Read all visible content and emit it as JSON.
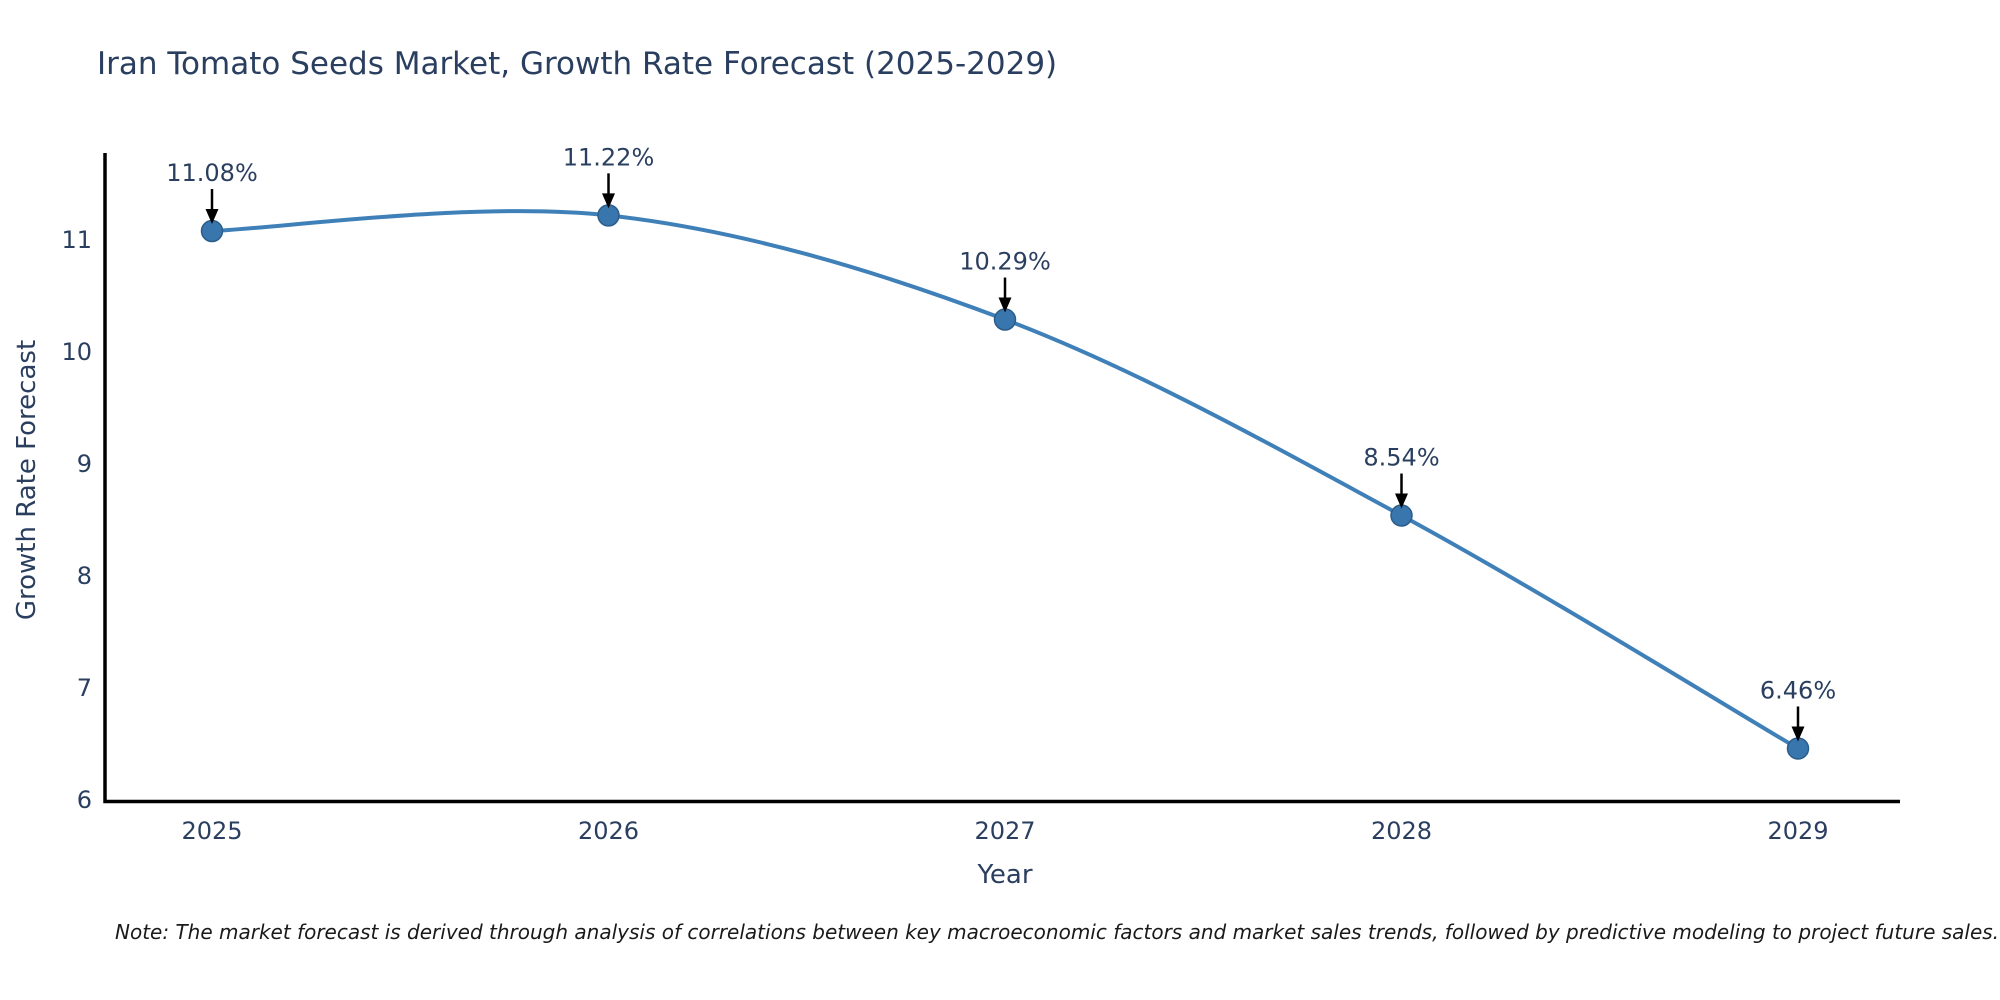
{
  "page": {
    "note": "Note: The market forecast is derived through analysis of correlations between key macroeconomic factors and market sales trends, followed by predictive modeling to project future sales."
  },
  "chart_data": {
    "type": "line",
    "title": "Iran Tomato Seeds Market, Growth Rate Forecast (2025-2029)",
    "xlabel": "Year",
    "ylabel": "Growth Rate Forecast",
    "categories": [
      "2025",
      "2026",
      "2027",
      "2028",
      "2029"
    ],
    "values": [
      11.08,
      11.22,
      10.29,
      8.54,
      6.46
    ],
    "point_labels": [
      "11.08%",
      "11.22%",
      "10.29%",
      "8.54%",
      "6.46%"
    ],
    "yticks": [
      6,
      7,
      8,
      9,
      10,
      11
    ],
    "ylim": [
      6,
      11.9
    ],
    "line_shape": "spline",
    "grid": false,
    "legend": "none",
    "colors": {
      "line": "#4080b8",
      "marker_fill": "#3a76ae",
      "marker_edge": "#2a5d8a",
      "axis": "#000000",
      "tick_text": "#2a3f5f",
      "annotation_text": "#2a3f5f",
      "arrow": "#000000",
      "background": "#ffffff"
    }
  }
}
